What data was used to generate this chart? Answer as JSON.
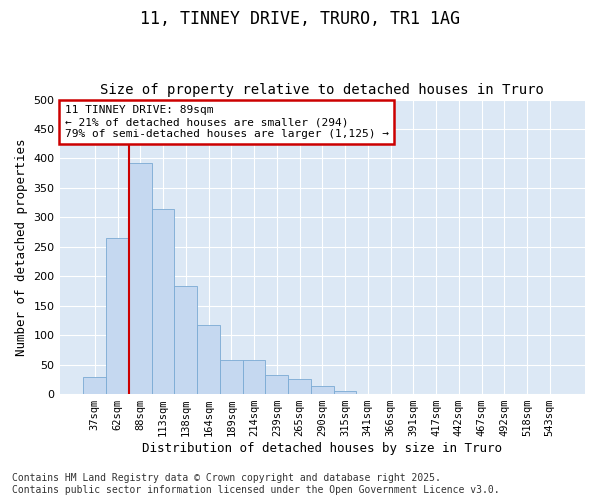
{
  "title_line1": "11, TINNEY DRIVE, TRURO, TR1 1AG",
  "title_line2": "Size of property relative to detached houses in Truro",
  "xlabel": "Distribution of detached houses by size in Truro",
  "ylabel": "Number of detached properties",
  "categories": [
    "37sqm",
    "62sqm",
    "88sqm",
    "113sqm",
    "138sqm",
    "164sqm",
    "189sqm",
    "214sqm",
    "239sqm",
    "265sqm",
    "290sqm",
    "315sqm",
    "341sqm",
    "366sqm",
    "391sqm",
    "417sqm",
    "442sqm",
    "467sqm",
    "492sqm",
    "518sqm",
    "543sqm"
  ],
  "values": [
    29,
    265,
    393,
    315,
    183,
    118,
    58,
    58,
    33,
    25,
    13,
    5,
    0,
    0,
    0,
    0,
    0,
    0,
    0,
    0,
    0
  ],
  "bar_color": "#c5d8f0",
  "bar_edge_color": "#7aaad4",
  "highlight_index": 2,
  "highlight_color": "#cc0000",
  "annotation_text": "11 TINNEY DRIVE: 89sqm\n← 21% of detached houses are smaller (294)\n79% of semi-detached houses are larger (1,125) →",
  "annotation_box_color": "#cc0000",
  "ylim": [
    0,
    500
  ],
  "yticks": [
    0,
    50,
    100,
    150,
    200,
    250,
    300,
    350,
    400,
    450,
    500
  ],
  "fig_background_color": "#ffffff",
  "plot_background_color": "#dce8f5",
  "grid_color": "#ffffff",
  "footer_text": "Contains HM Land Registry data © Crown copyright and database right 2025.\nContains public sector information licensed under the Open Government Licence v3.0.",
  "title_fontsize": 12,
  "subtitle_fontsize": 10,
  "tick_fontsize": 7.5,
  "label_fontsize": 9,
  "footer_fontsize": 7
}
